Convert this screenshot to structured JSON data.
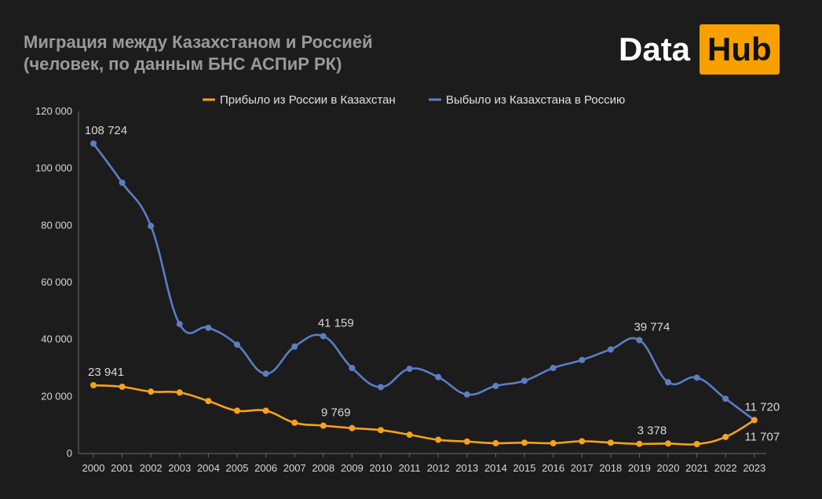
{
  "title_line1": "Миграция между Казахстаном и Россией",
  "title_line2": "(человек, по данным БНС АСПиР РК)",
  "logo": {
    "data": "Data",
    "hub": "Hub",
    "hub_color": "#f7a000"
  },
  "chart_data": {
    "type": "line",
    "x": [
      "2000",
      "2001",
      "2002",
      "2003",
      "2004",
      "2005",
      "2006",
      "2007",
      "2008",
      "2009",
      "2010",
      "2011",
      "2012",
      "2013",
      "2014",
      "2015",
      "2016",
      "2017",
      "2018",
      "2019",
      "2020",
      "2021",
      "2022",
      "2023"
    ],
    "ylim": [
      0,
      120000
    ],
    "yticks": [
      "0",
      "20 000",
      "40 000",
      "60 000",
      "80 000",
      "100 000",
      "120 000"
    ],
    "ytick_values": [
      0,
      20000,
      40000,
      60000,
      80000,
      100000,
      120000
    ],
    "grid": false,
    "legend": "top",
    "series": [
      {
        "name": "Прибыло из России в Казахстан",
        "color": "#f7a21b",
        "values": [
          23941,
          23400,
          21700,
          21400,
          18400,
          15000,
          15000,
          10800,
          9769,
          8900,
          8200,
          6600,
          4800,
          4200,
          3600,
          3800,
          3600,
          4300,
          3800,
          3378,
          3500,
          3300,
          5800,
          11707
        ],
        "labels": [
          {
            "index": 0,
            "text": "23 941",
            "pos": "above"
          },
          {
            "index": 8,
            "text": "9 769",
            "pos": "above"
          },
          {
            "index": 19,
            "text": "3 378",
            "pos": "above"
          },
          {
            "index": 23,
            "text": "11 707",
            "pos": "below"
          }
        ]
      },
      {
        "name": "Выбыло из Казахстана в Россию",
        "color": "#5b7ec4",
        "values": [
          108724,
          95000,
          79800,
          45400,
          44100,
          38200,
          28000,
          37500,
          41159,
          30000,
          23300,
          29700,
          26800,
          20700,
          23700,
          25500,
          30000,
          32800,
          36500,
          39774,
          25000,
          26600,
          19200,
          11720
        ],
        "labels": [
          {
            "index": 0,
            "text": "108 724",
            "pos": "above"
          },
          {
            "index": 8,
            "text": "41 159",
            "pos": "above"
          },
          {
            "index": 19,
            "text": "39 774",
            "pos": "above"
          },
          {
            "index": 23,
            "text": "11 720",
            "pos": "above"
          }
        ]
      }
    ]
  }
}
